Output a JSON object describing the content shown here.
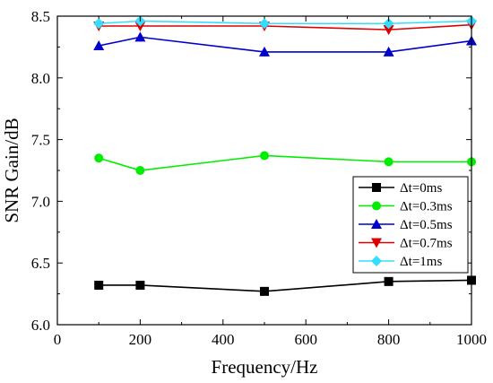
{
  "chart_data": {
    "type": "line",
    "title": "",
    "xlabel": "Frequency/Hz",
    "ylabel": "SNR Gain/dB",
    "xlim": [
      0,
      1000
    ],
    "ylim": [
      6.0,
      8.5
    ],
    "xticks": [
      0,
      200,
      400,
      600,
      800,
      1000
    ],
    "yticks": [
      6.0,
      6.5,
      7.0,
      7.5,
      8.0,
      8.5
    ],
    "xtick_labels": [
      "0",
      "200",
      "400",
      "600",
      "800",
      "1000"
    ],
    "ytick_labels": [
      "6.0",
      "6.5",
      "7.0",
      "7.5",
      "8.0",
      "8.5"
    ],
    "grid": false,
    "legend_position": "right",
    "x": [
      100,
      200,
      500,
      800,
      1000
    ],
    "series": [
      {
        "name": "Δt=0ms",
        "values": [
          6.32,
          6.32,
          6.27,
          6.35,
          6.36
        ],
        "color": "#000000",
        "marker": "square"
      },
      {
        "name": "Δt=0.3ms",
        "values": [
          7.35,
          7.25,
          7.37,
          7.32,
          7.32
        ],
        "color": "#00ee00",
        "marker": "circle"
      },
      {
        "name": "Δt=0.5ms",
        "values": [
          8.26,
          8.33,
          8.21,
          8.21,
          8.3
        ],
        "color": "#0000cc",
        "marker": "triangle-up"
      },
      {
        "name": "Δt=0.7ms",
        "values": [
          8.42,
          8.42,
          8.42,
          8.39,
          8.43
        ],
        "color": "#dd0000",
        "marker": "triangle-down"
      },
      {
        "name": "Δt=1ms",
        "values": [
          8.44,
          8.46,
          8.44,
          8.44,
          8.46
        ],
        "color": "#33ddff",
        "marker": "diamond"
      }
    ]
  }
}
